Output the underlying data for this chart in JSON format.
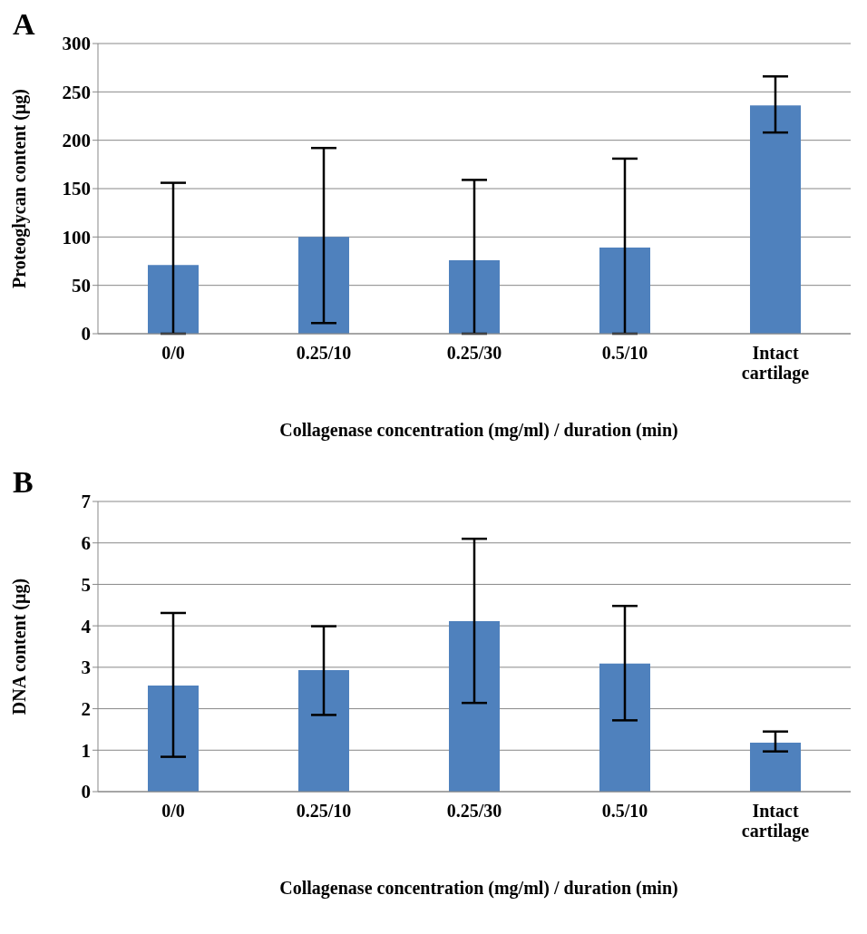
{
  "chart_data": [
    {
      "type": "bar",
      "title": "A",
      "xlabel": "Collagenase concentration (mg/ml) / duration (min)",
      "ylabel": "Proteoglycan content (µg)",
      "categories": [
        "0/0",
        "0.25/10",
        "0.25/30",
        "0.5/10",
        "Intact cartilage"
      ],
      "values": [
        71,
        100,
        76,
        89,
        236
      ],
      "errors": [
        [
          0,
          156
        ],
        [
          11,
          192
        ],
        [
          0,
          159
        ],
        [
          0,
          181
        ],
        [
          208,
          266
        ]
      ],
      "color": "#4f81bd",
      "ylim": [
        0,
        300
      ],
      "yticks": [
        0,
        50,
        100,
        150,
        200,
        250,
        300
      ],
      "grid": "y"
    },
    {
      "type": "bar",
      "title": "B",
      "xlabel": "Collagenase concentration (mg/ml) / duration (min)",
      "ylabel": "DNA content (µg)",
      "categories": [
        "0/0",
        "0.25/10",
        "0.25/30",
        "0.5/10",
        "Intact cartilage"
      ],
      "values": [
        2.56,
        2.93,
        4.11,
        3.09,
        1.18
      ],
      "errors": [
        [
          0.84,
          4.31
        ],
        [
          1.85,
          3.99
        ],
        [
          2.14,
          6.1
        ],
        [
          1.72,
          4.48
        ],
        [
          0.97,
          1.45
        ]
      ],
      "color": "#4f81bd",
      "ylim": [
        0,
        7
      ],
      "yticks": [
        0,
        1,
        2,
        3,
        4,
        5,
        6,
        7
      ],
      "grid": "y"
    }
  ]
}
